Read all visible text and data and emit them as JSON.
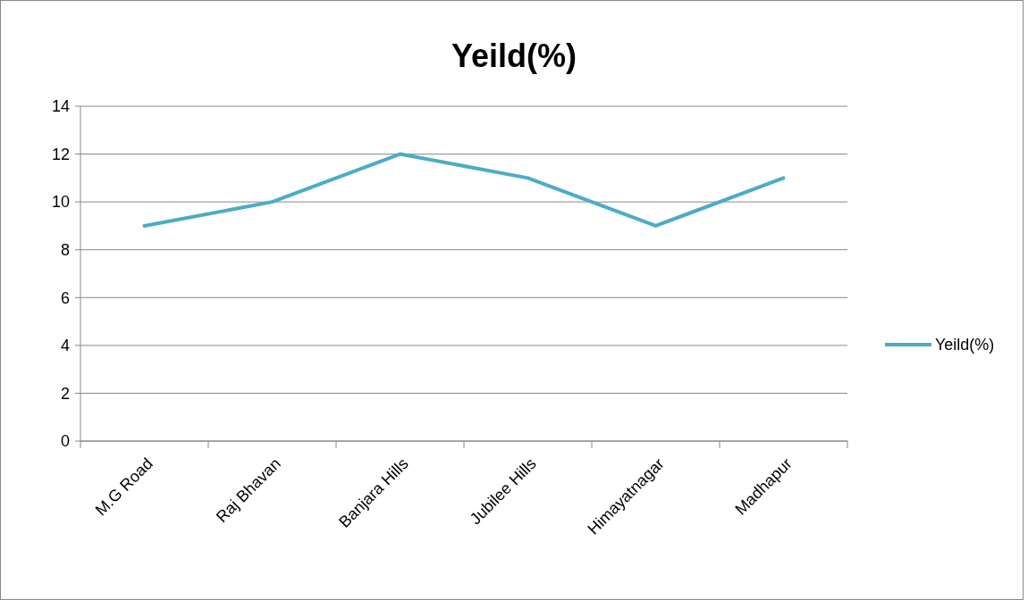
{
  "chart_data": {
    "type": "line",
    "title": "Yeild(%)",
    "categories": [
      "M.G Road",
      "Raj Bhavan",
      "Banjara Hills",
      "Jubilee Hills",
      "Himayatnagar",
      "Madhapur"
    ],
    "series": [
      {
        "name": "Yeild(%)",
        "color": "#4bacc6",
        "values": [
          9,
          10,
          12,
          11,
          9,
          11
        ]
      }
    ],
    "ylim": [
      0,
      14
    ],
    "yticks": [
      0,
      2,
      4,
      6,
      8,
      10,
      12,
      14
    ],
    "grid": "y",
    "legend": "right",
    "marker": "none"
  }
}
